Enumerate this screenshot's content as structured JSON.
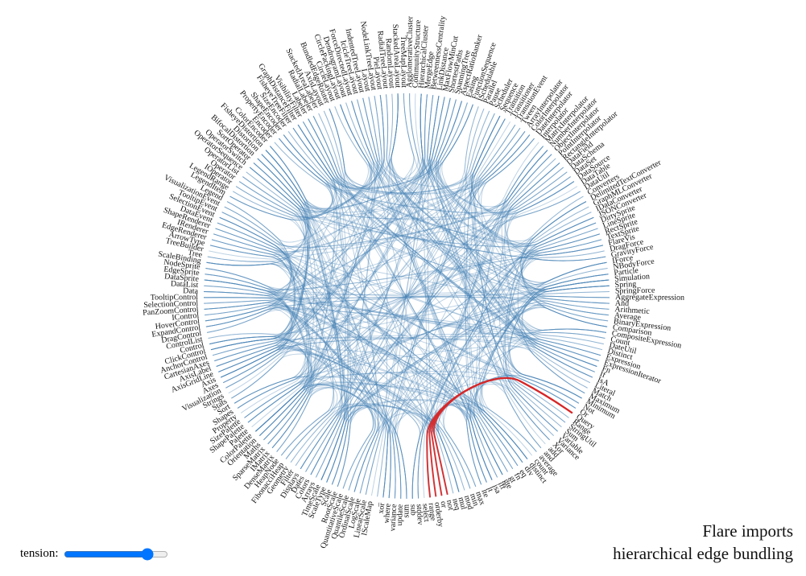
{
  "title": "Flare imports",
  "subtitle": "hierarchical edge bundling",
  "slider_label": "tension:",
  "nodes": [
    "AgglomerativeCluster",
    "CommunityStructure",
    "HierarchicalCluster",
    "MergeEdge",
    "BetweennessCentrality",
    "LinkDistance",
    "MaxFlowMinCut",
    "ShortestPaths",
    "SpanningTree",
    "AspectRatioBanker",
    "Easing",
    "FunctionSequence",
    "ISchedulable",
    "Parallel",
    "Pause",
    "Scheduler",
    "Sequence",
    "Transition",
    "Transitioner",
    "TransitionEvent",
    "Tween",
    "ArrayInterpolator",
    "ColorInterpolator",
    "DateInterpolator",
    "Interpolator",
    "MatrixInterpolator",
    "NumberInterpolator",
    "ObjectInterpolator",
    "PointInterpolator",
    "RectangleInterpolator",
    "DataField",
    "DataSchema",
    "DataSet",
    "DataSource",
    "DataTable",
    "DataUtil",
    "Converters",
    "DelimitedTextConverter",
    "GraphMLConverter",
    "IDataConverter",
    "JSONConverter",
    "DirtySprite",
    "LineSprite",
    "RectSprite",
    "TextSprite",
    "FlareVis",
    "DragForce",
    "GravityForce",
    "IForce",
    "NBodyForce",
    "Particle",
    "Simulation",
    "Spring",
    "SpringForce",
    "AggregateExpression",
    "And",
    "Arithmetic",
    "Average",
    "BinaryExpression",
    "Comparison",
    "CompositeExpression",
    "Count",
    "DateUtil",
    "Distinct",
    "Expression",
    "ExpressionIterator",
    "Fn",
    "If",
    "IsA",
    "Literal",
    "Match",
    "Maximum",
    "Minimum",
    "Not",
    "Or",
    "Query",
    "Range",
    "StringUtil",
    "Sum",
    "Variable",
    "Variance",
    "Xor",
    "add",
    "and",
    "average",
    "count",
    "distinct",
    "div",
    "eq",
    "fn",
    "gt",
    "gte",
    "iff",
    "isa",
    "lt",
    "lte",
    "max",
    "min",
    "mod",
    "mul",
    "neq",
    "not",
    "or",
    "orderby",
    "range",
    "select",
    "stddev",
    "sub",
    "sum",
    "update",
    "variance",
    "where",
    "xor",
    "_",
    "IScaleMap",
    "LinearScale",
    "LogScale",
    "OrdinalScale",
    "QuantileScale",
    "QuantitativeScale",
    "RootScale",
    "Scale",
    "ScaleType",
    "TimeScale",
    "Arrays",
    "Colors",
    "Dates",
    "Displays",
    "Filter",
    "Geometry",
    "FibonacciHeap",
    "HeapNode",
    "DenseMatrix",
    "IMatrix",
    "SparseMatrix",
    "Maths",
    "Orientation",
    "ColorPalette",
    "Palette",
    "ShapePalette",
    "SizePalette",
    "Property",
    "Shapes",
    "Sort",
    "Stats",
    "Strings",
    "Visualization",
    "Axes",
    "Axis",
    "AxisGridLine",
    "AxisLabel",
    "CartesianAxes",
    "AnchorControl",
    "ClickControl",
    "Control",
    "ControlList",
    "DragControl",
    "ExpandControl",
    "HoverControl",
    "IControl",
    "PanZoomControl",
    "SelectionControl",
    "TooltipControl",
    "Data",
    "DataList",
    "DataSprite",
    "EdgeSprite",
    "NodeSprite",
    "ScaleBinding",
    "Tree",
    "TreeBuilder",
    "ArrowType",
    "EdgeRenderer",
    "IRenderer",
    "ShapeRenderer",
    "DataEvent",
    "SelectionEvent",
    "TooltipEvent",
    "VisualizationEvent",
    "Legend",
    "LegendItem",
    "LegendRange",
    "IOperator",
    "Operator",
    "OperatorList",
    "OperatorSequence",
    "OperatorSwitch",
    "SortOperator",
    "BifocalDistortion",
    "Distortion",
    "FisheyeDistortion",
    "ColorEncoder",
    "Encoder",
    "PropertyEncoder",
    "ShapeEncoder",
    "SizeEncoder",
    "FisheyeTreeFilter",
    "GraphDistanceFilter",
    "VisibilityFilter",
    "Labeler",
    "RadialLabeler",
    "StackedAreaLabeler",
    "AxisLayout",
    "BundledEdgeRouter",
    "CircleLayout",
    "CirclePackingLayout",
    "DendrogramLayout",
    "ForceDirectedLayout",
    "IcicleTreeLayout",
    "IndentedTreeLayout",
    "Layout",
    "NodeLinkTreeLayout",
    "PieLayout",
    "RadialTreeLayout",
    "RandomLayout",
    "StackedAreaLayout",
    "TreeMapLayout"
  ]
}
